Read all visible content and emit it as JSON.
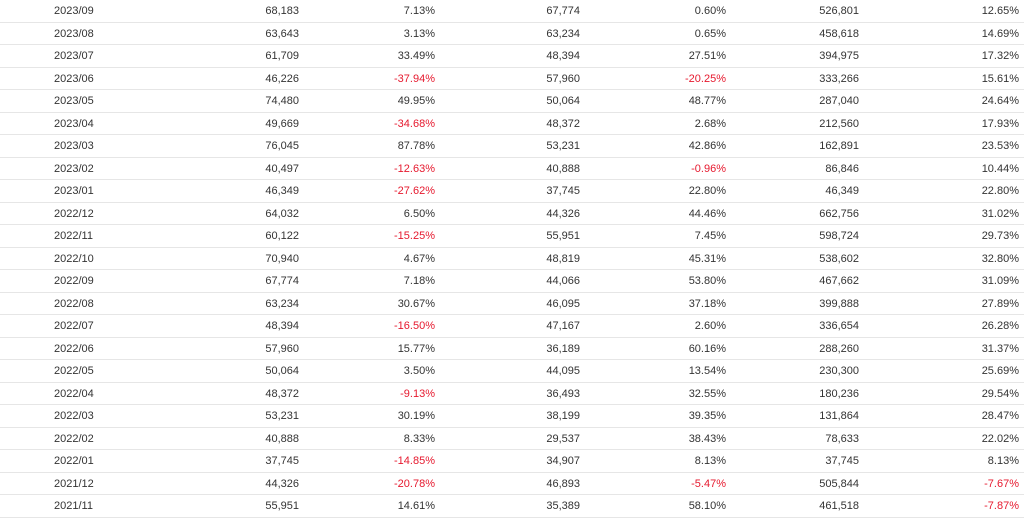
{
  "colors": {
    "text": "#333333",
    "negative": "#e6192e",
    "row_border": "#e6e6e6"
  },
  "rows": [
    {
      "date": "2023/09",
      "v1": "68,183",
      "p1": "7.13%",
      "v2": "67,774",
      "p2": "0.60%",
      "v3": "526,801",
      "p3": "12.65%"
    },
    {
      "date": "2023/08",
      "v1": "63,643",
      "p1": "3.13%",
      "v2": "63,234",
      "p2": "0.65%",
      "v3": "458,618",
      "p3": "14.69%"
    },
    {
      "date": "2023/07",
      "v1": "61,709",
      "p1": "33.49%",
      "v2": "48,394",
      "p2": "27.51%",
      "v3": "394,975",
      "p3": "17.32%"
    },
    {
      "date": "2023/06",
      "v1": "46,226",
      "p1": "-37.94%",
      "v2": "57,960",
      "p2": "-20.25%",
      "v3": "333,266",
      "p3": "15.61%"
    },
    {
      "date": "2023/05",
      "v1": "74,480",
      "p1": "49.95%",
      "v2": "50,064",
      "p2": "48.77%",
      "v3": "287,040",
      "p3": "24.64%"
    },
    {
      "date": "2023/04",
      "v1": "49,669",
      "p1": "-34.68%",
      "v2": "48,372",
      "p2": "2.68%",
      "v3": "212,560",
      "p3": "17.93%"
    },
    {
      "date": "2023/03",
      "v1": "76,045",
      "p1": "87.78%",
      "v2": "53,231",
      "p2": "42.86%",
      "v3": "162,891",
      "p3": "23.53%"
    },
    {
      "date": "2023/02",
      "v1": "40,497",
      "p1": "-12.63%",
      "v2": "40,888",
      "p2": "-0.96%",
      "v3": "86,846",
      "p3": "10.44%"
    },
    {
      "date": "2023/01",
      "v1": "46,349",
      "p1": "-27.62%",
      "v2": "37,745",
      "p2": "22.80%",
      "v3": "46,349",
      "p3": "22.80%"
    },
    {
      "date": "2022/12",
      "v1": "64,032",
      "p1": "6.50%",
      "v2": "44,326",
      "p2": "44.46%",
      "v3": "662,756",
      "p3": "31.02%"
    },
    {
      "date": "2022/11",
      "v1": "60,122",
      "p1": "-15.25%",
      "v2": "55,951",
      "p2": "7.45%",
      "v3": "598,724",
      "p3": "29.73%"
    },
    {
      "date": "2022/10",
      "v1": "70,940",
      "p1": "4.67%",
      "v2": "48,819",
      "p2": "45.31%",
      "v3": "538,602",
      "p3": "32.80%"
    },
    {
      "date": "2022/09",
      "v1": "67,774",
      "p1": "7.18%",
      "v2": "44,066",
      "p2": "53.80%",
      "v3": "467,662",
      "p3": "31.09%"
    },
    {
      "date": "2022/08",
      "v1": "63,234",
      "p1": "30.67%",
      "v2": "46,095",
      "p2": "37.18%",
      "v3": "399,888",
      "p3": "27.89%"
    },
    {
      "date": "2022/07",
      "v1": "48,394",
      "p1": "-16.50%",
      "v2": "47,167",
      "p2": "2.60%",
      "v3": "336,654",
      "p3": "26.28%"
    },
    {
      "date": "2022/06",
      "v1": "57,960",
      "p1": "15.77%",
      "v2": "36,189",
      "p2": "60.16%",
      "v3": "288,260",
      "p3": "31.37%"
    },
    {
      "date": "2022/05",
      "v1": "50,064",
      "p1": "3.50%",
      "v2": "44,095",
      "p2": "13.54%",
      "v3": "230,300",
      "p3": "25.69%"
    },
    {
      "date": "2022/04",
      "v1": "48,372",
      "p1": "-9.13%",
      "v2": "36,493",
      "p2": "32.55%",
      "v3": "180,236",
      "p3": "29.54%"
    },
    {
      "date": "2022/03",
      "v1": "53,231",
      "p1": "30.19%",
      "v2": "38,199",
      "p2": "39.35%",
      "v3": "131,864",
      "p3": "28.47%"
    },
    {
      "date": "2022/02",
      "v1": "40,888",
      "p1": "8.33%",
      "v2": "29,537",
      "p2": "38.43%",
      "v3": "78,633",
      "p3": "22.02%"
    },
    {
      "date": "2022/01",
      "v1": "37,745",
      "p1": "-14.85%",
      "v2": "34,907",
      "p2": "8.13%",
      "v3": "37,745",
      "p3": "8.13%"
    },
    {
      "date": "2021/12",
      "v1": "44,326",
      "p1": "-20.78%",
      "v2": "46,893",
      "p2": "-5.47%",
      "v3": "505,844",
      "p3": "-7.67%"
    },
    {
      "date": "2021/11",
      "v1": "55,951",
      "p1": "14.61%",
      "v2": "35,389",
      "p2": "58.10%",
      "v3": "461,518",
      "p3": "-7.87%"
    }
  ]
}
